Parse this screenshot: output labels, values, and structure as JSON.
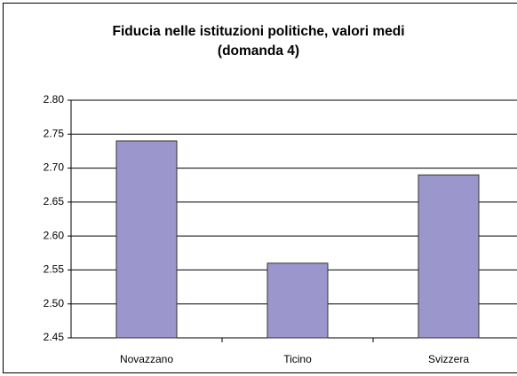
{
  "chart_data": {
    "type": "bar",
    "title": "Fiducia nelle istituzioni politiche, valori medi (domanda 4)",
    "categories": [
      "Novazzano",
      "Ticino",
      "Svizzera"
    ],
    "values": [
      2.74,
      2.56,
      2.69
    ],
    "color": "#9b97cc",
    "ylim": [
      2.45,
      2.8
    ],
    "yticks": [
      {
        "value": 2.45,
        "label": "2.45"
      },
      {
        "value": 2.5,
        "label": "2.50"
      },
      {
        "value": 2.55,
        "label": "2.55"
      },
      {
        "value": 2.6,
        "label": "2.60"
      },
      {
        "value": 2.65,
        "label": "2.65"
      },
      {
        "value": 2.7,
        "label": "2.70"
      },
      {
        "value": 2.75,
        "label": "2.75"
      },
      {
        "value": 2.8,
        "label": "2.80"
      }
    ],
    "grid": true
  }
}
